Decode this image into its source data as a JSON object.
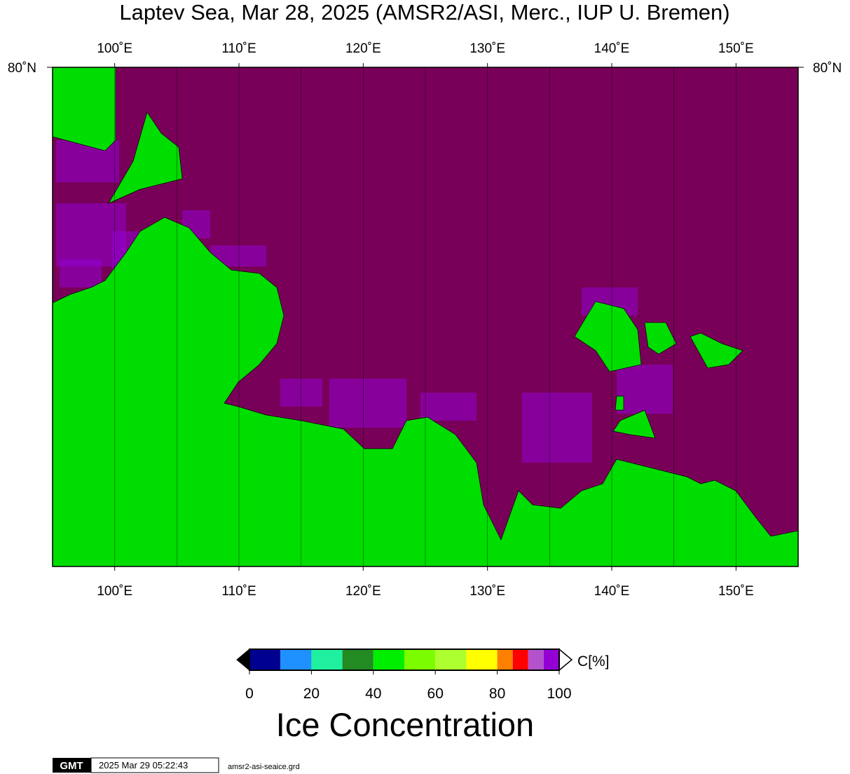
{
  "header": {
    "title": "Laptev Sea, Mar 28, 2025 (AMSR2/ASI, Merc., IUP U. Bremen)"
  },
  "map": {
    "xlim": [
      95,
      155
    ],
    "xticks": [
      {
        "value": 100,
        "label": "100˚E"
      },
      {
        "value": 110,
        "label": "110˚E"
      },
      {
        "value": 120,
        "label": "120˚E"
      },
      {
        "value": 130,
        "label": "130˚E"
      },
      {
        "value": 140,
        "label": "140˚E"
      },
      {
        "value": 150,
        "label": "150˚E"
      }
    ],
    "xgrid": [
      100,
      105,
      110,
      115,
      120,
      125,
      130,
      135,
      140,
      145,
      150
    ],
    "lat_label": {
      "value": 80,
      "label": "80˚N"
    },
    "ocean_color": "#780058",
    "land_color": "#00dd00"
  },
  "colorbar": {
    "bins": [
      0,
      10,
      20,
      30,
      40,
      50,
      60,
      70,
      80,
      85,
      90,
      95,
      100
    ],
    "colors": [
      "#000090",
      "#1e90ff",
      "#1ef0a0",
      "#228b22",
      "#00ee00",
      "#7cfc00",
      "#adff2f",
      "#ffff00",
      "#ff8000",
      "#ff0000",
      "#b452cd",
      "#9400d3"
    ],
    "xlim": [
      0,
      100
    ],
    "xticks": [
      0,
      20,
      40,
      60,
      80,
      100
    ],
    "unit_label": "C[%]",
    "title": "Ice Concentration"
  },
  "footer": {
    "logo": "GMT",
    "timestamp": "2025 Mar 29 05:22:43",
    "file": "amsr2-asi-seaice.grd"
  }
}
